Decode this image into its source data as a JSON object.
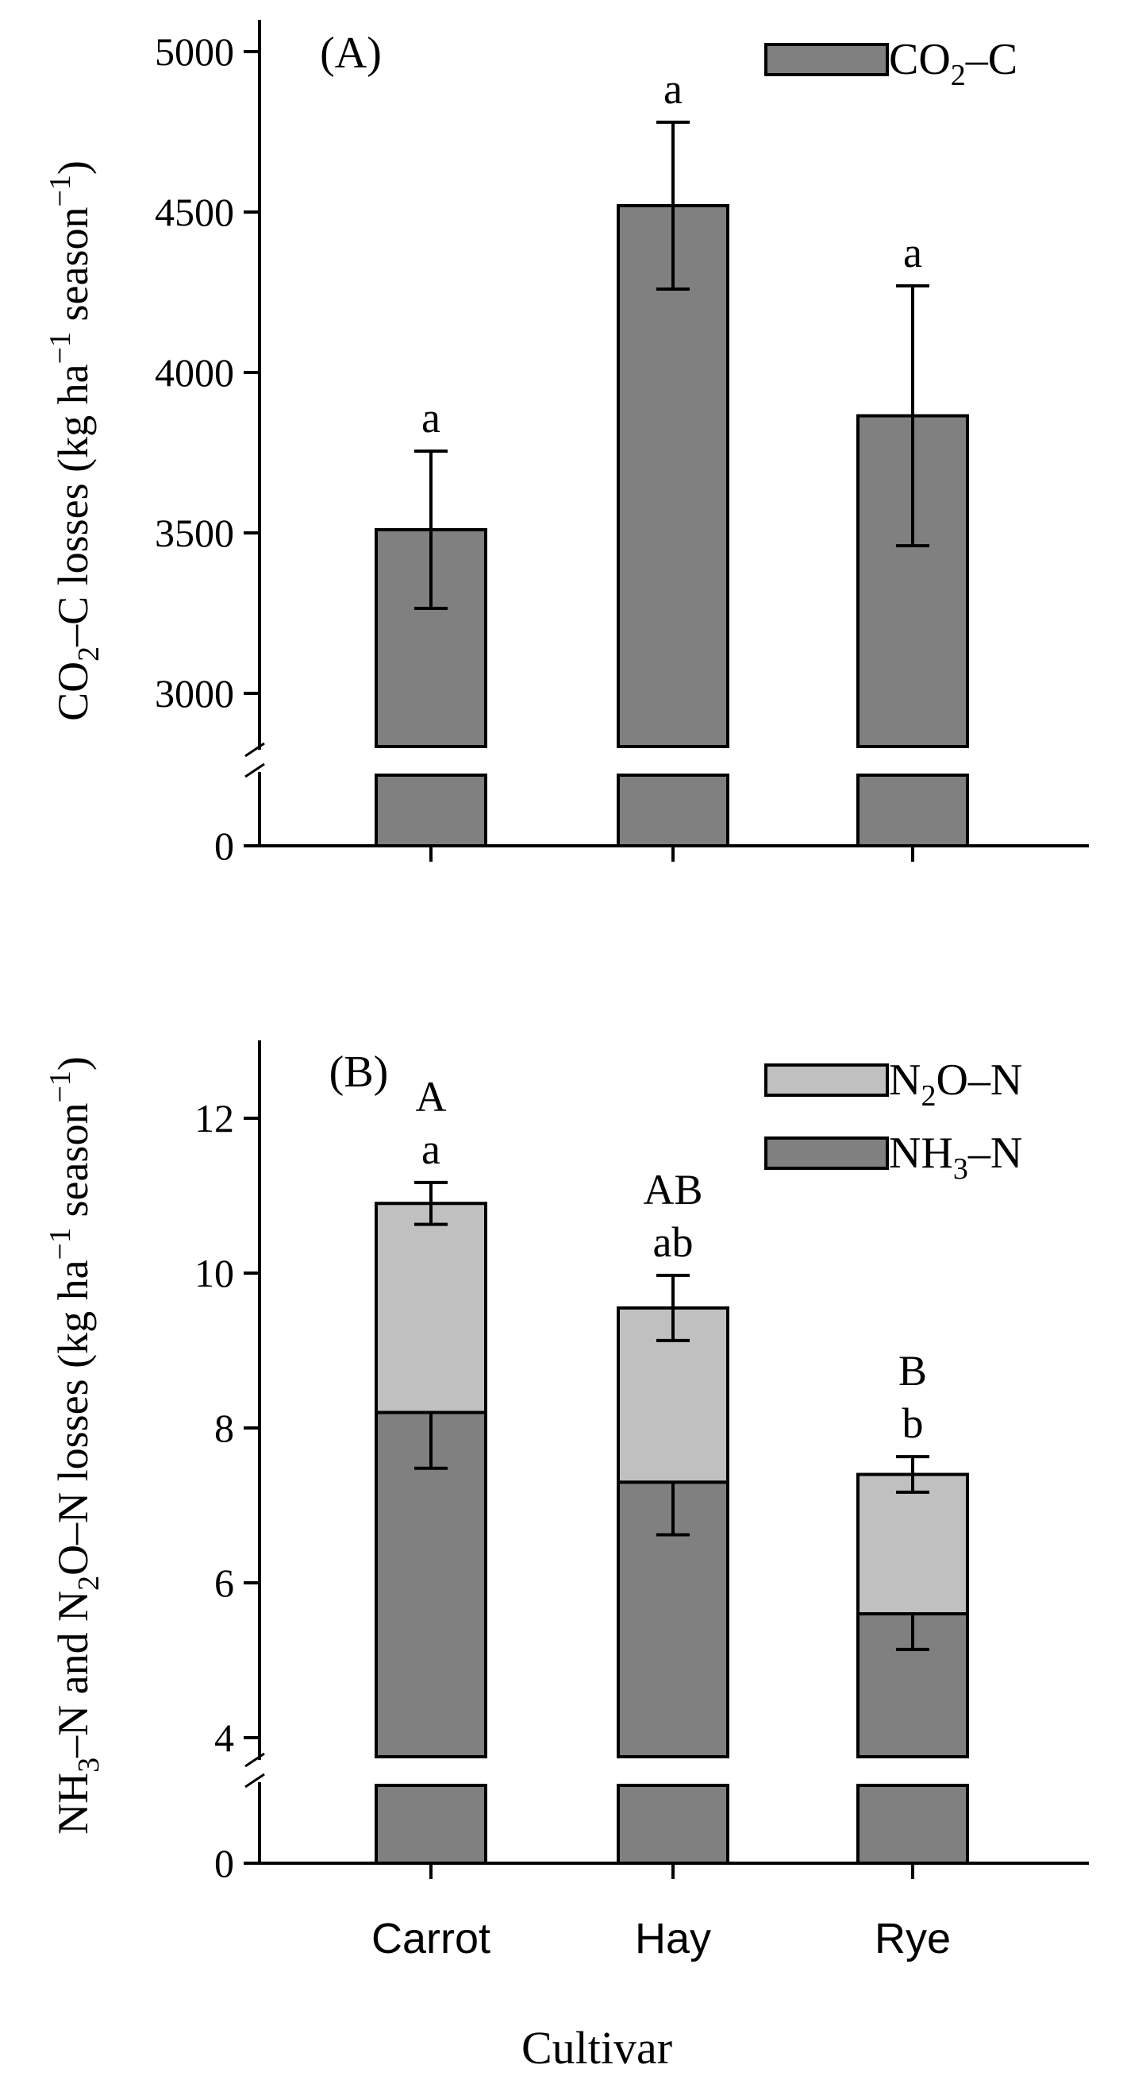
{
  "figure": {
    "x_axis_title": "Cultivar",
    "colors": {
      "dark_bar": "#808080",
      "light_bar": "#c0c0c0",
      "ink": "#000000"
    }
  },
  "chart_data": [
    {
      "id": "A",
      "panel_label": "(A)",
      "type": "bar",
      "axis_break": true,
      "categories": [
        "Carrot",
        "Hay",
        "Rye"
      ],
      "series": [
        {
          "name": "CO2–C",
          "legend_main": "CO",
          "legend_sub": "2",
          "legend_tail": "–C",
          "color": "#808080",
          "values": [
            3510,
            4520,
            3865
          ],
          "errors": [
            245,
            260,
            405
          ],
          "letters": [
            "a",
            "a",
            "a"
          ]
        }
      ],
      "y_ticks": [
        0,
        3000,
        3500,
        4000,
        4500,
        5000
      ],
      "ylim_upper": [
        2790,
        5100
      ],
      "ylabel_parts": [
        {
          "t": "CO"
        },
        {
          "t": "2",
          "sub": true
        },
        {
          "t": "–C losses (kg ha"
        },
        {
          "t": "−1",
          "sup": true
        },
        {
          "t": " season"
        },
        {
          "t": "−1",
          "sup": true
        },
        {
          "t": ")"
        }
      ]
    },
    {
      "id": "B",
      "panel_label": "(B)",
      "type": "stacked-bar",
      "axis_break": true,
      "categories": [
        "Carrot",
        "Hay",
        "Rye"
      ],
      "series": [
        {
          "name": "NH3–N",
          "legend_main": "NH",
          "legend_sub": "3",
          "legend_tail": "–N",
          "color": "#808080",
          "values": [
            8.2,
            7.3,
            5.6
          ],
          "errors": [
            0.72,
            0.68,
            0.46
          ],
          "letters": [
            "a",
            "ab",
            "b"
          ]
        },
        {
          "name": "N2O–N",
          "legend_main": "N",
          "legend_sub": "2",
          "legend_tail": "O–N",
          "color": "#c0c0c0",
          "values": [
            2.7,
            2.25,
            1.8
          ],
          "errors": [
            0.27,
            0.42,
            0.23
          ],
          "letters": [
            "a",
            "ab",
            "b"
          ]
        }
      ],
      "total_letters": [
        "A",
        "AB",
        "B"
      ],
      "y_ticks": [
        0,
        4,
        6,
        8,
        10,
        12
      ],
      "ylim_upper": [
        3.45,
        13.0
      ],
      "ylabel_parts": [
        {
          "t": "NH"
        },
        {
          "t": "3",
          "sub": true
        },
        {
          "t": "–N and N"
        },
        {
          "t": "2",
          "sub": true
        },
        {
          "t": "O–N losses (kg ha"
        },
        {
          "t": "−1",
          "sup": true
        },
        {
          "t": " season"
        },
        {
          "t": "−1",
          "sup": true
        },
        {
          "t": ")"
        }
      ]
    }
  ]
}
